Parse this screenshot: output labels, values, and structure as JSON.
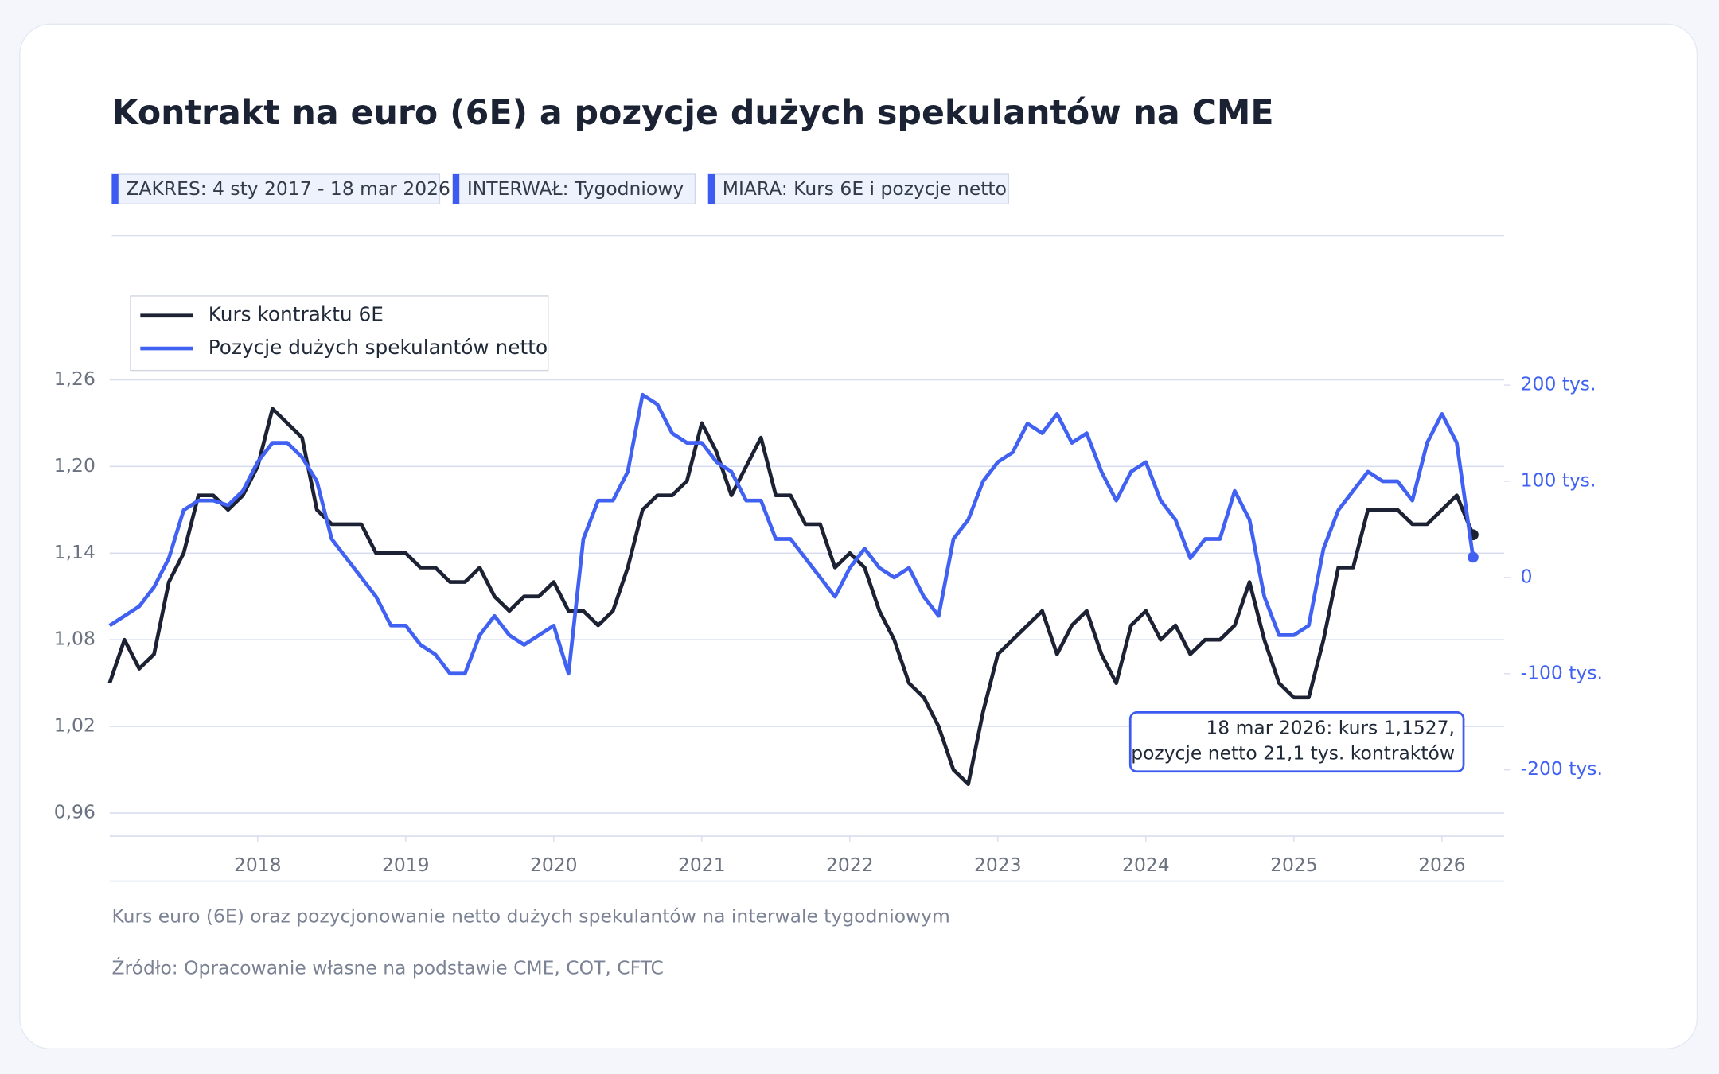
{
  "chart_data": {
    "type": "line",
    "title": "Kontrakt na euro (6E) a pozycje dużych spekulantów na CME",
    "badges": [
      "ZAKRES: 4 sty 2017 - 18 mar 2026",
      "INTERWAŁ: Tygodniowy",
      "MIARA: Kurs 6E i pozycje netto"
    ],
    "caption": "Kurs euro (6E) oraz pozycjonowanie netto dużych spekulantów na interwale tygodniowym",
    "source": "Źródło: Opracowanie własne na podstawie CME, COT, CFTC",
    "annotation": [
      "18 mar 2026: kurs 1,1527,",
      "pozycje netto 21,1 tys. kontraktów"
    ],
    "x": [
      2017.0,
      2017.1,
      2017.2,
      2017.3,
      2017.4,
      2017.5,
      2017.6,
      2017.7,
      2017.8,
      2017.9,
      2018.0,
      2018.1,
      2018.2,
      2018.3,
      2018.4,
      2018.5,
      2018.6,
      2018.7,
      2018.8,
      2018.9,
      2019.0,
      2019.1,
      2019.2,
      2019.3,
      2019.4,
      2019.5,
      2019.6,
      2019.7,
      2019.8,
      2019.9,
      2020.0,
      2020.1,
      2020.2,
      2020.3,
      2020.4,
      2020.5,
      2020.6,
      2020.7,
      2020.8,
      2020.9,
      2021.0,
      2021.1,
      2021.2,
      2021.3,
      2021.4,
      2021.5,
      2021.6,
      2021.7,
      2021.8,
      2021.9,
      2022.0,
      2022.1,
      2022.2,
      2022.3,
      2022.4,
      2022.5,
      2022.6,
      2022.7,
      2022.8,
      2022.9,
      2023.0,
      2023.1,
      2023.2,
      2023.3,
      2023.4,
      2023.5,
      2023.6,
      2023.7,
      2023.8,
      2023.9,
      2024.0,
      2024.1,
      2024.2,
      2024.3,
      2024.4,
      2024.5,
      2024.6,
      2024.7,
      2024.8,
      2024.9,
      2025.0,
      2025.1,
      2025.2,
      2025.3,
      2025.4,
      2025.5,
      2025.6,
      2025.7,
      2025.8,
      2025.9,
      2026.0,
      2026.1,
      2026.21
    ],
    "xlim": [
      2017.0,
      2026.42
    ],
    "xticks": [
      2018,
      2019,
      2020,
      2021,
      2022,
      2023,
      2024,
      2025,
      2026
    ],
    "ylim": [
      0.944,
      1.265
    ],
    "yticks": [
      {
        "value": 0.96,
        "label": "0,96"
      },
      {
        "value": 1.02,
        "label": "1,02"
      },
      {
        "value": 1.08,
        "label": "1,08"
      },
      {
        "value": 1.14,
        "label": "1,14"
      },
      {
        "value": 1.2,
        "label": "1,20"
      },
      {
        "value": 1.26,
        "label": "1,26"
      }
    ],
    "y2lim": [
      -269,
      213
    ],
    "y2ticks": [
      {
        "value": -200,
        "label": "-200 tys."
      },
      {
        "value": -100,
        "label": "-100 tys."
      },
      0,
      {
        "value": 100,
        "label": "100 tys."
      },
      {
        "value": 200,
        "label": "200 tys."
      }
    ],
    "grid": true,
    "legend": "upper left",
    "series": [
      {
        "name": "Kurs kontraktu 6E",
        "color": "#1c2233",
        "axis": "y",
        "values": [
          1.05,
          1.08,
          1.06,
          1.07,
          1.12,
          1.14,
          1.18,
          1.18,
          1.17,
          1.18,
          1.2,
          1.24,
          1.23,
          1.22,
          1.17,
          1.16,
          1.16,
          1.16,
          1.14,
          1.14,
          1.14,
          1.13,
          1.13,
          1.12,
          1.12,
          1.13,
          1.11,
          1.1,
          1.11,
          1.11,
          1.12,
          1.1,
          1.1,
          1.09,
          1.1,
          1.13,
          1.17,
          1.18,
          1.18,
          1.19,
          1.23,
          1.21,
          1.18,
          1.2,
          1.22,
          1.18,
          1.18,
          1.16,
          1.16,
          1.13,
          1.14,
          1.13,
          1.1,
          1.08,
          1.05,
          1.04,
          1.02,
          0.99,
          0.98,
          1.03,
          1.07,
          1.08,
          1.09,
          1.1,
          1.07,
          1.09,
          1.1,
          1.07,
          1.05,
          1.09,
          1.1,
          1.08,
          1.09,
          1.07,
          1.08,
          1.08,
          1.09,
          1.12,
          1.08,
          1.05,
          1.04,
          1.04,
          1.08,
          1.13,
          1.13,
          1.17,
          1.17,
          1.17,
          1.16,
          1.16,
          1.17,
          1.18,
          1.1527
        ]
      },
      {
        "name": "Pozycje dużych spekulantów netto",
        "color": "#4161f2",
        "axis": "y2",
        "values": [
          -50,
          -40,
          -30,
          -10,
          20,
          70,
          80,
          80,
          75,
          90,
          120,
          140,
          140,
          125,
          100,
          40,
          20,
          0,
          -20,
          -50,
          -50,
          -70,
          -80,
          -100,
          -100,
          -60,
          -40,
          -60,
          -70,
          -60,
          -50,
          -100,
          40,
          80,
          80,
          110,
          190,
          180,
          150,
          140,
          140,
          120,
          110,
          80,
          80,
          40,
          40,
          20,
          0,
          -20,
          10,
          30,
          10,
          0,
          10,
          -20,
          -40,
          40,
          60,
          100,
          120,
          130,
          160,
          150,
          170,
          140,
          150,
          110,
          80,
          110,
          120,
          80,
          60,
          20,
          40,
          40,
          90,
          60,
          -20,
          -60,
          -60,
          -50,
          30,
          70,
          90,
          110,
          100,
          100,
          80,
          140,
          170,
          140,
          21.1
        ]
      }
    ]
  }
}
